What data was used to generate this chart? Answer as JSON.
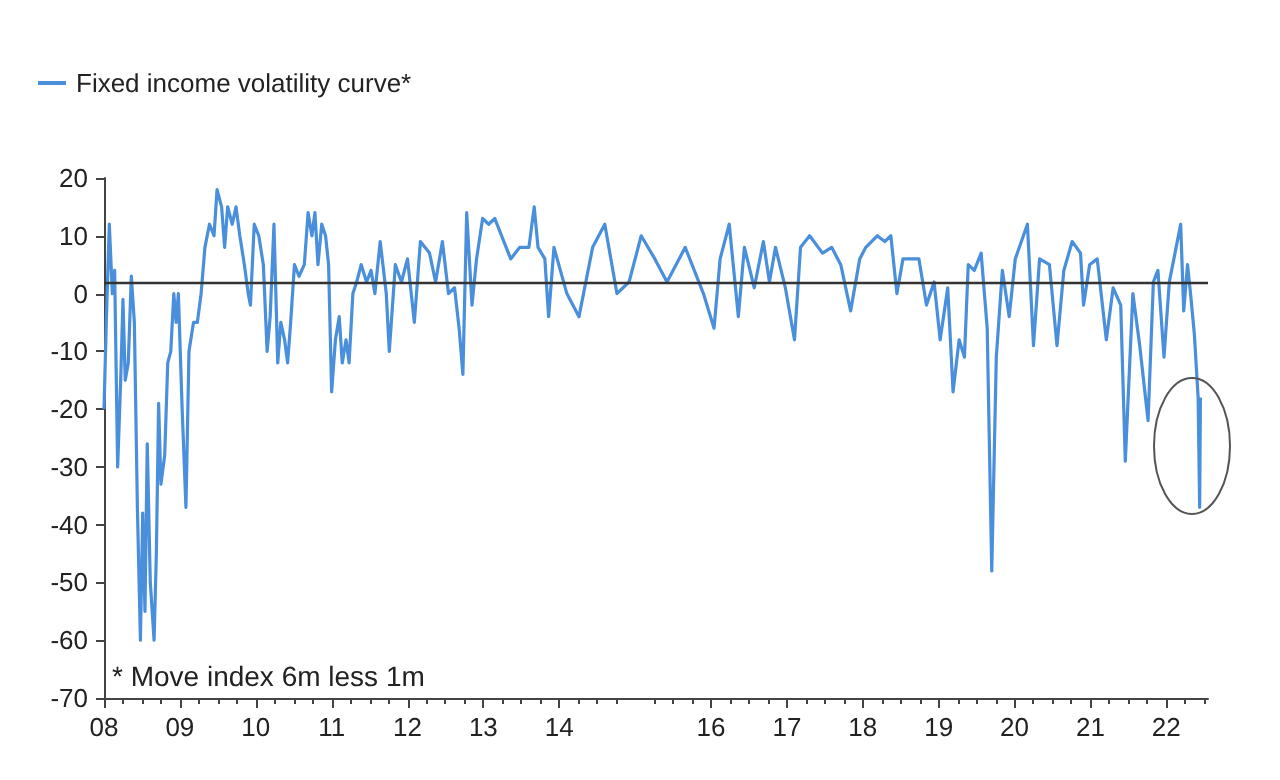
{
  "chart_data": {
    "type": "line",
    "legend": "top left",
    "grid": false,
    "marker": "none",
    "line_style": "solid",
    "annotations": [
      "* Move index 6m less 1m"
    ],
    "xlim": [
      2008,
      2022.55
    ],
    "xticks": [
      {
        "value": 2008,
        "label": "08"
      },
      {
        "value": 2009,
        "label": "09"
      },
      {
        "value": 2010,
        "label": "10"
      },
      {
        "value": 2011,
        "label": "11"
      },
      {
        "value": 2012,
        "label": "12"
      },
      {
        "value": 2013,
        "label": "13"
      },
      {
        "value": 2014,
        "label": "14"
      },
      {
        "value": 2016,
        "label": "16"
      },
      {
        "value": 2017,
        "label": "17"
      },
      {
        "value": 2018,
        "label": "18"
      },
      {
        "value": 2019,
        "label": "19"
      },
      {
        "value": 2020,
        "label": "20"
      },
      {
        "value": 2021,
        "label": "21"
      },
      {
        "value": 2022,
        "label": "22"
      }
    ],
    "ylim": [
      -70,
      20
    ],
    "yticks": [
      -70,
      -60,
      -50,
      -40,
      -30,
      -20,
      -10,
      0,
      10,
      20
    ],
    "ref_lines": [
      {
        "axis": "y",
        "value": 2,
        "color": "#333333"
      }
    ],
    "series": [
      {
        "name": "Fixed income volatility curve*",
        "color": "#4a8fdc",
        "x": [
          2008.0,
          2008.03,
          2008.07,
          2008.11,
          2008.14,
          2008.18,
          2008.22,
          2008.25,
          2008.28,
          2008.32,
          2008.36,
          2008.4,
          2008.44,
          2008.48,
          2008.51,
          2008.54,
          2008.57,
          2008.61,
          2008.66,
          2008.69,
          2008.72,
          2008.75,
          2008.8,
          2008.84,
          2008.88,
          2008.92,
          2008.95,
          2008.98,
          2009.03,
          2009.08,
          2009.12,
          2009.18,
          2009.23,
          2009.28,
          2009.33,
          2009.39,
          2009.45,
          2009.49,
          2009.55,
          2009.59,
          2009.63,
          2009.69,
          2009.74,
          2009.79,
          2009.85,
          2009.9,
          2009.93,
          2009.98,
          2010.04,
          2010.1,
          2010.15,
          2010.19,
          2010.24,
          2010.29,
          2010.33,
          2010.38,
          2010.42,
          2010.46,
          2010.51,
          2010.57,
          2010.64,
          2010.69,
          2010.74,
          2010.78,
          2010.82,
          2010.87,
          2010.92,
          2010.96,
          2011.0,
          2011.05,
          2011.1,
          2011.14,
          2011.19,
          2011.23,
          2011.28,
          2011.33,
          2011.39,
          2011.46,
          2011.52,
          2011.57,
          2011.64,
          2011.72,
          2011.76,
          2011.84,
          2011.92,
          2012.0,
          2012.09,
          2012.17,
          2012.29,
          2012.37,
          2012.46,
          2012.54,
          2012.62,
          2012.68,
          2012.73,
          2012.78,
          2012.85,
          2012.91,
          2012.99,
          2013.07,
          2013.15,
          2013.27,
          2013.36,
          2013.48,
          2013.6,
          2013.67,
          2013.72,
          2013.81,
          2013.86,
          2013.93,
          2014.1,
          2014.26,
          2014.44,
          2014.6,
          2014.76,
          2014.92,
          2015.08,
          2015.26,
          2015.42,
          2015.66,
          2015.9,
          2016.04,
          2016.12,
          2016.24,
          2016.36,
          2016.44,
          2016.57,
          2016.69,
          2016.77,
          2016.85,
          2016.98,
          2017.1,
          2017.18,
          2017.3,
          2017.47,
          2017.59,
          2017.71,
          2017.84,
          2017.96,
          2018.04,
          2018.19,
          2018.29,
          2018.37,
          2018.45,
          2018.53,
          2018.66,
          2018.74,
          2018.84,
          2018.94,
          2019.02,
          2019.12,
          2019.19,
          2019.27,
          2019.34,
          2019.39,
          2019.47,
          2019.56,
          2019.64,
          2019.7,
          2019.76,
          2019.84,
          2019.93,
          2020.01,
          2020.17,
          2020.25,
          2020.33,
          2020.46,
          2020.56,
          2020.65,
          2020.76,
          2020.87,
          2020.91,
          2020.99,
          2021.09,
          2021.21,
          2021.3,
          2021.4,
          2021.46,
          2021.56,
          2021.65,
          2021.76,
          2021.83,
          2021.89,
          2021.97,
          2022.04,
          2022.1,
          2022.19,
          2022.23,
          2022.28,
          2022.32,
          2022.37,
          2022.42,
          2022.44,
          2022.45
        ],
        "values": [
          -20,
          -5,
          12,
          0,
          4,
          -30,
          -15,
          -1,
          -15,
          -12,
          3,
          -5,
          -37,
          -60,
          -38,
          -55,
          -26,
          -50,
          -60,
          -45,
          -19,
          -33,
          -28,
          -12,
          -10,
          0,
          -5,
          0,
          -20,
          -37,
          -10,
          -5,
          -5,
          0,
          8,
          12,
          10,
          18,
          15,
          8,
          15,
          12,
          15,
          10,
          5,
          0,
          -2,
          12,
          10,
          5,
          -10,
          -4,
          12,
          -12,
          -5,
          -8,
          -12,
          -5,
          5,
          3,
          5,
          14,
          10,
          14,
          5,
          12,
          10,
          5,
          -17,
          -8,
          -4,
          -12,
          -8,
          -12,
          0,
          2,
          5,
          2,
          4,
          0,
          9,
          0,
          -10,
          5,
          2,
          6,
          -5,
          9,
          7,
          2,
          9,
          0,
          1,
          -6,
          -14,
          14,
          -2,
          6,
          13,
          12,
          13,
          9,
          6,
          8,
          8,
          15,
          8,
          6,
          -4,
          8,
          0,
          -4,
          8,
          12,
          0,
          2,
          10,
          6,
          2,
          8,
          0,
          -6,
          6,
          12,
          -4,
          8,
          1,
          9,
          2,
          8,
          1,
          -8,
          8,
          10,
          7,
          8,
          5,
          -3,
          6,
          8,
          10,
          9,
          10,
          0,
          6,
          6,
          6,
          -2,
          2,
          -8,
          1,
          -17,
          -8,
          -11,
          5,
          4,
          7,
          -6,
          -48,
          -11,
          4,
          -4,
          6,
          12,
          -9,
          6,
          5,
          -9,
          4,
          9,
          7,
          -2,
          5,
          6,
          -8,
          1,
          -2,
          -29,
          0,
          -9,
          -22,
          2,
          4,
          -11,
          2,
          6,
          12,
          -3,
          5,
          0,
          -7,
          -18,
          -37,
          -18
        ]
      }
    ]
  }
}
